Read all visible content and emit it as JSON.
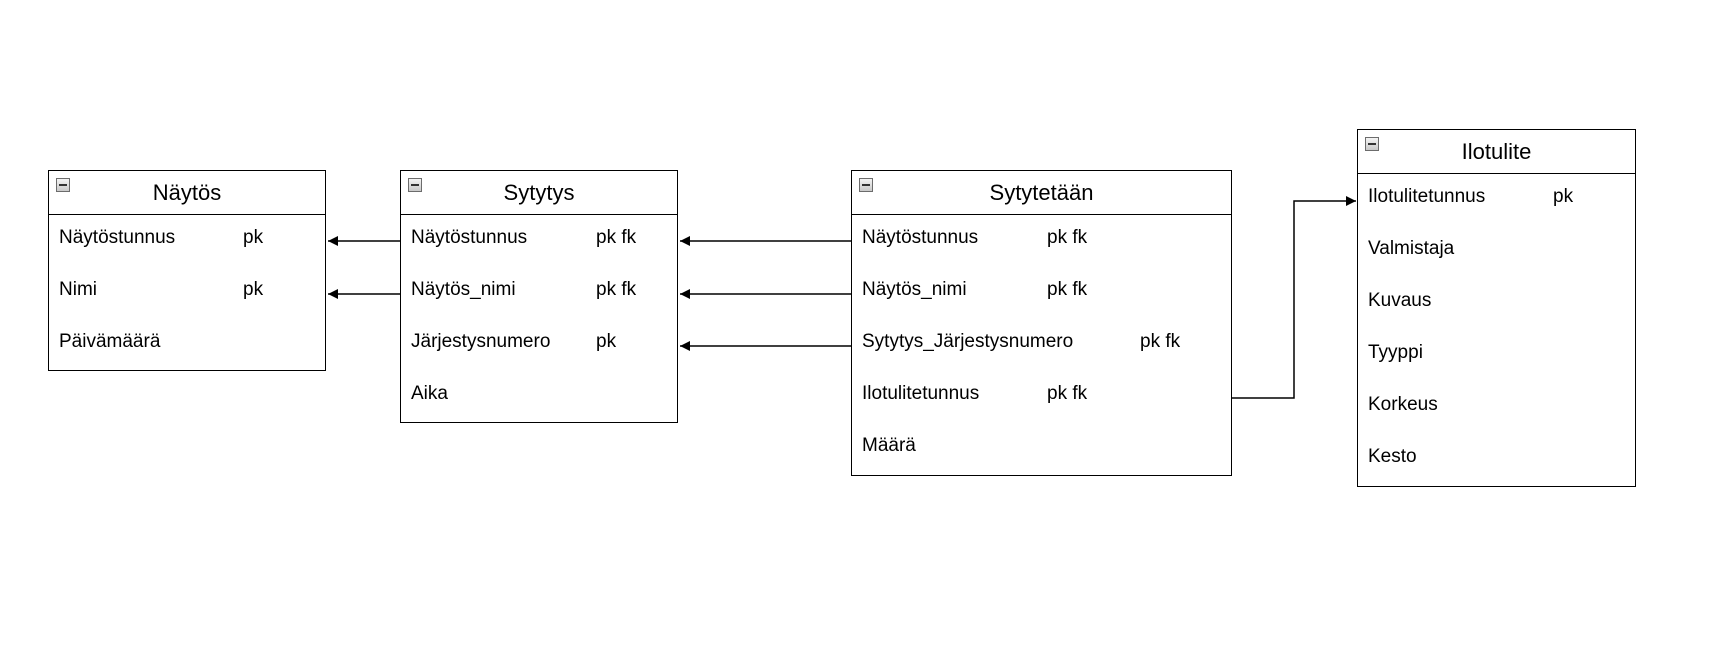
{
  "entities": {
    "naytos": {
      "title": "Näytös",
      "fields": [
        {
          "name": "Näytöstunnus",
          "keys": "pk"
        },
        {
          "name": "Nimi",
          "keys": "pk"
        },
        {
          "name": "Päivämäärä",
          "keys": ""
        }
      ]
    },
    "sytytys": {
      "title": "Sytytys",
      "fields": [
        {
          "name": "Näytöstunnus",
          "keys": "pk fk"
        },
        {
          "name": "Näytös_nimi",
          "keys": "pk fk"
        },
        {
          "name": "Järjestysnumero",
          "keys": "pk"
        },
        {
          "name": "Aika",
          "keys": ""
        }
      ]
    },
    "sytytetaan": {
      "title": "Sytytetään",
      "fields": [
        {
          "name": "Näytöstunnus",
          "keys": "pk fk"
        },
        {
          "name": "Näytös_nimi",
          "keys": "pk fk"
        },
        {
          "name": "Sytytys_Järjestysnumero",
          "keys": "pk fk"
        },
        {
          "name": "Ilotulitetunnus",
          "keys": "pk fk"
        },
        {
          "name": "Määrä",
          "keys": ""
        }
      ]
    },
    "ilotulite": {
      "title": "Ilotulite",
      "fields": [
        {
          "name": "Ilotulitetunnus",
          "keys": "pk"
        },
        {
          "name": "Valmistaja",
          "keys": ""
        },
        {
          "name": "Kuvaus",
          "keys": ""
        },
        {
          "name": "Tyyppi",
          "keys": ""
        },
        {
          "name": "Korkeus",
          "keys": ""
        },
        {
          "name": "Kesto",
          "keys": ""
        }
      ]
    }
  },
  "relationships": [
    {
      "from": "sytytys.Näytöstunnus",
      "to": "naytos.Näytöstunnus"
    },
    {
      "from": "sytytys.Näytös_nimi",
      "to": "naytos.Nimi"
    },
    {
      "from": "sytytetaan.Näytöstunnus",
      "to": "sytytys.Näytöstunnus"
    },
    {
      "from": "sytytetaan.Näytös_nimi",
      "to": "sytytys.Näytös_nimi"
    },
    {
      "from": "sytytetaan.Sytytys_Järjestysnumero",
      "to": "sytytys.Järjestysnumero"
    },
    {
      "from": "sytytetaan.Ilotulitetunnus",
      "to": "ilotulite.Ilotulitetunnus"
    }
  ],
  "icons": {
    "collapse": "collapse-icon"
  },
  "colors": {
    "line": "#000000",
    "background": "#ffffff"
  }
}
